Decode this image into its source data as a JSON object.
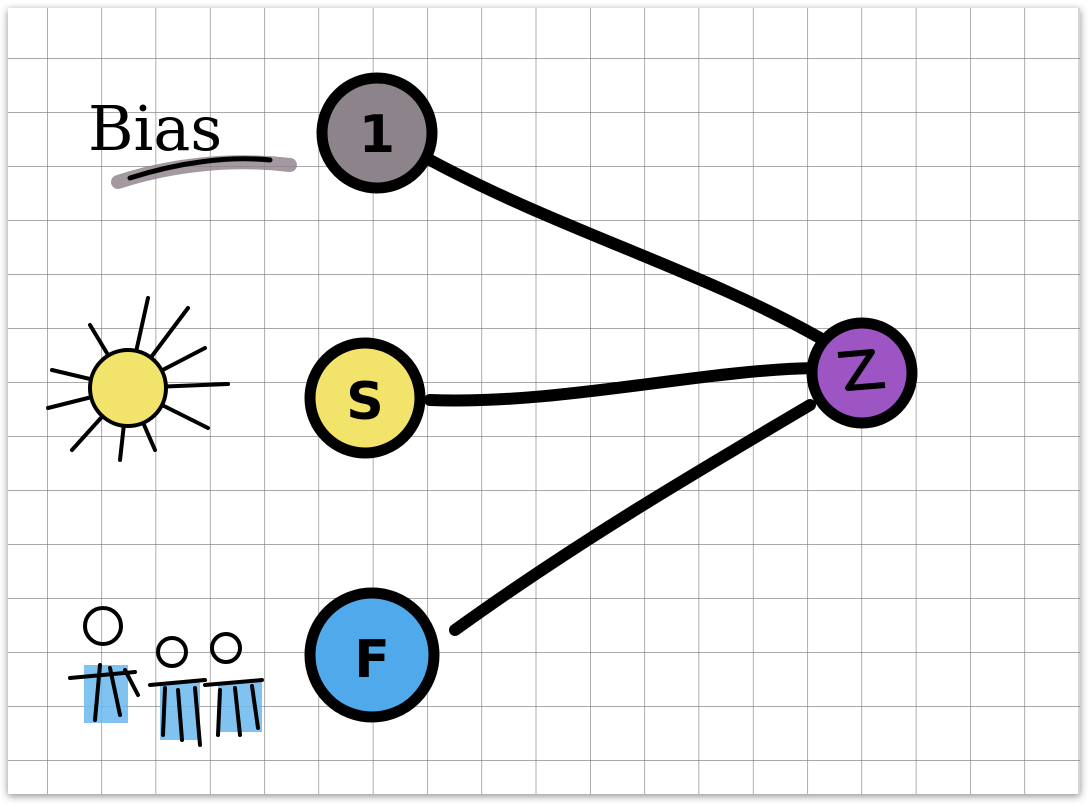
{
  "labels": {
    "bias": "Bias"
  },
  "nodes": [
    {
      "label": "1"
    },
    {
      "label": "S"
    },
    {
      "label": "F"
    }
  ]
}
